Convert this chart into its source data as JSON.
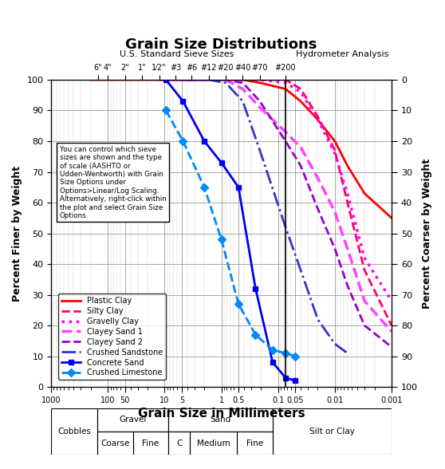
{
  "title": "Grain Size Distributions",
  "xlabel": "Grain Size in Millimeters",
  "ylabel_left": "Percent Finer by Weight",
  "ylabel_right": "Percent Coarser by Weight",
  "sieve_labels": [
    "6\"",
    "4\"",
    "2\"",
    "1\"",
    "1⁄2\"",
    "#3",
    "#6",
    "#12",
    "#20",
    "#40",
    "#70",
    "#200"
  ],
  "sieve_sizes_mm": [
    150,
    100,
    50,
    25,
    12.5,
    6.35,
    3.36,
    1.68,
    0.84,
    0.42,
    0.21,
    0.074
  ],
  "hydrometer_label": "Hydrometer Analysis",
  "top_label": "U.S. Standard Sieve Sizes",
  "annotation_text": "You can control which sieve\nsizes are shown and the type\nof scale (AASHTO or\nUdden-Wentworth) with Grain\nSize Options under\nOptions>Linear/Log Scaling.\nAlternatively, right-click within\nthe plot and select Grain Size\nOptions.",
  "series": {
    "Plastic Clay": {
      "x": [
        200,
        100,
        50,
        25,
        12.5,
        6.35,
        3.36,
        1.68,
        0.84,
        0.42,
        0.21,
        0.074,
        0.04,
        0.02,
        0.01,
        0.006,
        0.003,
        0.001
      ],
      "y": [
        100,
        100,
        100,
        100,
        100,
        100,
        100,
        100,
        100,
        100,
        99,
        97,
        93,
        87,
        80,
        72,
        63,
        55
      ],
      "color": "#FF0000",
      "ls": "-",
      "lw": 2.0,
      "marker": null,
      "ms": 0
    },
    "Silty Clay": {
      "x": [
        0.21,
        0.074,
        0.04,
        0.02,
        0.01,
        0.006,
        0.003,
        0.001
      ],
      "y": [
        100,
        100,
        97,
        88,
        77,
        60,
        38,
        20
      ],
      "color": "#FF0066",
      "ls": "--",
      "lw": 2.0,
      "marker": null,
      "ms": 0
    },
    "Gravelly Clay": {
      "x": [
        12.5,
        6.35,
        3.36,
        1.68,
        0.84,
        0.42,
        0.21,
        0.074,
        0.04,
        0.02,
        0.01,
        0.006,
        0.003,
        0.001
      ],
      "y": [
        100,
        100,
        100,
        100,
        100,
        100,
        100,
        99,
        96,
        87,
        76,
        63,
        42,
        28
      ],
      "color": "#FF00FF",
      "ls": ":",
      "lw": 2.5,
      "marker": null,
      "ms": 0
    },
    "Clayey Sand 1": {
      "x": [
        9.5,
        6.35,
        3.36,
        1.68,
        0.84,
        0.42,
        0.21,
        0.074,
        0.04,
        0.02,
        0.01,
        0.006,
        0.003,
        0.001
      ],
      "y": [
        100,
        100,
        100,
        100,
        100,
        97,
        91,
        83,
        78,
        68,
        57,
        45,
        28,
        18
      ],
      "color": "#FF44FF",
      "ls": "--",
      "lw": 2.5,
      "marker": null,
      "ms": 0
    },
    "Clayey Sand 2": {
      "x": [
        6.35,
        3.36,
        1.68,
        0.84,
        0.42,
        0.21,
        0.074,
        0.04,
        0.02,
        0.01,
        0.006,
        0.003,
        0.001
      ],
      "y": [
        100,
        100,
        100,
        100,
        99,
        93,
        80,
        72,
        58,
        45,
        33,
        20,
        13
      ],
      "color": "#9900CC",
      "ls": "--",
      "lw": 2.0,
      "marker": null,
      "ms": 0
    },
    "Crushed Sandstone": {
      "x": [
        4.75,
        3.36,
        1.68,
        0.84,
        0.42,
        0.21,
        0.074,
        0.04,
        0.02,
        0.01,
        0.006
      ],
      "y": [
        100,
        100,
        100,
        99,
        93,
        77,
        52,
        38,
        22,
        14,
        11
      ],
      "color": "#3333CC",
      "ls": "-.",
      "lw": 2.0,
      "marker": null,
      "ms": 0
    },
    "Concrete Sand": {
      "x": [
        9.5,
        4.75,
        2.0,
        1.0,
        0.5,
        0.25,
        0.125,
        0.074,
        0.05
      ],
      "y": [
        100,
        93,
        80,
        73,
        65,
        32,
        8,
        3,
        2
      ],
      "color": "#0000EE",
      "ls": "-",
      "lw": 2.0,
      "marker": "s",
      "ms": 5
    },
    "Crushed Limestone": {
      "x": [
        9.5,
        4.75,
        2.0,
        1.0,
        0.5,
        0.25,
        0.125,
        0.074,
        0.05
      ],
      "y": [
        90,
        80,
        65,
        48,
        27,
        17,
        12,
        11,
        10
      ],
      "color": "#0088FF",
      "ls": "--",
      "lw": 2.0,
      "marker": "D",
      "ms": 5
    }
  }
}
